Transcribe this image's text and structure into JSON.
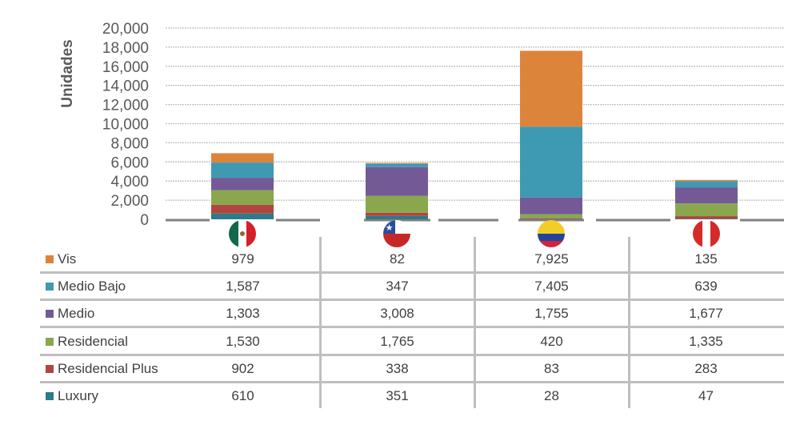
{
  "chart_data": {
    "type": "bar",
    "stacked": true,
    "ylabel": "Unidades",
    "ylim": [
      0,
      20000
    ],
    "yticks": [
      "0",
      "2,000",
      "4,000",
      "6,000",
      "8,000",
      "10,000",
      "12,000",
      "14,000",
      "16,000",
      "18,000",
      "20,000"
    ],
    "categories": [
      "mexico",
      "chile",
      "colombia",
      "peru"
    ],
    "series": [
      {
        "name": "Luxury",
        "color": "#2d7a8a",
        "values": [
          610,
          351,
          28,
          47
        ],
        "labels": [
          "610",
          "351",
          "28",
          "47"
        ]
      },
      {
        "name": "Residencial Plus",
        "color": "#b0463f",
        "values": [
          902,
          338,
          83,
          283
        ],
        "labels": [
          "902",
          "338",
          "83",
          "283"
        ]
      },
      {
        "name": "Residencial",
        "color": "#8aa74e",
        "values": [
          1530,
          1765,
          420,
          1335
        ],
        "labels": [
          "1,530",
          "1,765",
          "420",
          "1,335"
        ]
      },
      {
        "name": "Medio",
        "color": "#735a97",
        "values": [
          1303,
          3008,
          1755,
          1677
        ],
        "labels": [
          "1,303",
          "3,008",
          "1,755",
          "1,677"
        ]
      },
      {
        "name": "Medio Bajo",
        "color": "#3e9ab3",
        "values": [
          1587,
          347,
          7405,
          639
        ],
        "labels": [
          "1,587",
          "347",
          "7,405",
          "639"
        ]
      },
      {
        "name": "Vis",
        "color": "#dd843b",
        "values": [
          979,
          82,
          7925,
          135
        ],
        "labels": [
          "979",
          "82",
          "7,925",
          "135"
        ]
      }
    ],
    "grid": true
  }
}
